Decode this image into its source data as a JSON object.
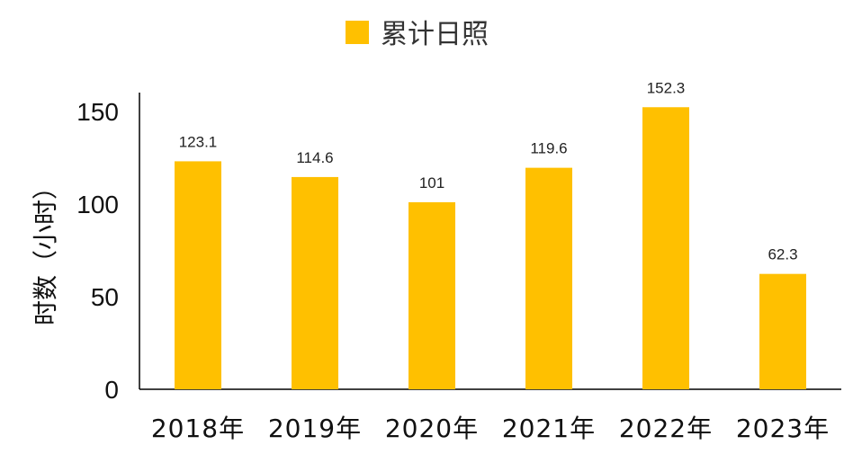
{
  "chart_data": {
    "type": "bar",
    "categories": [
      "2018年",
      "2019年",
      "2020年",
      "2021年",
      "2022年",
      "2023年"
    ],
    "series": [
      {
        "name": "累计日照",
        "values": [
          123.1,
          114.6,
          101,
          119.6,
          152.3,
          62.3
        ]
      }
    ],
    "data_labels": [
      "123.1",
      "114.6",
      "101",
      "119.6",
      "152.3",
      "62.3"
    ],
    "ylabel": "时数（小时）",
    "xlabel": "",
    "ylim": [
      0,
      160
    ],
    "yticks": [
      0,
      50,
      100,
      150
    ],
    "ytick_labels": [
      "0",
      "50",
      "100",
      "150"
    ],
    "grid": false,
    "legend_position": "top-center",
    "bar_color": "#FFC000"
  }
}
